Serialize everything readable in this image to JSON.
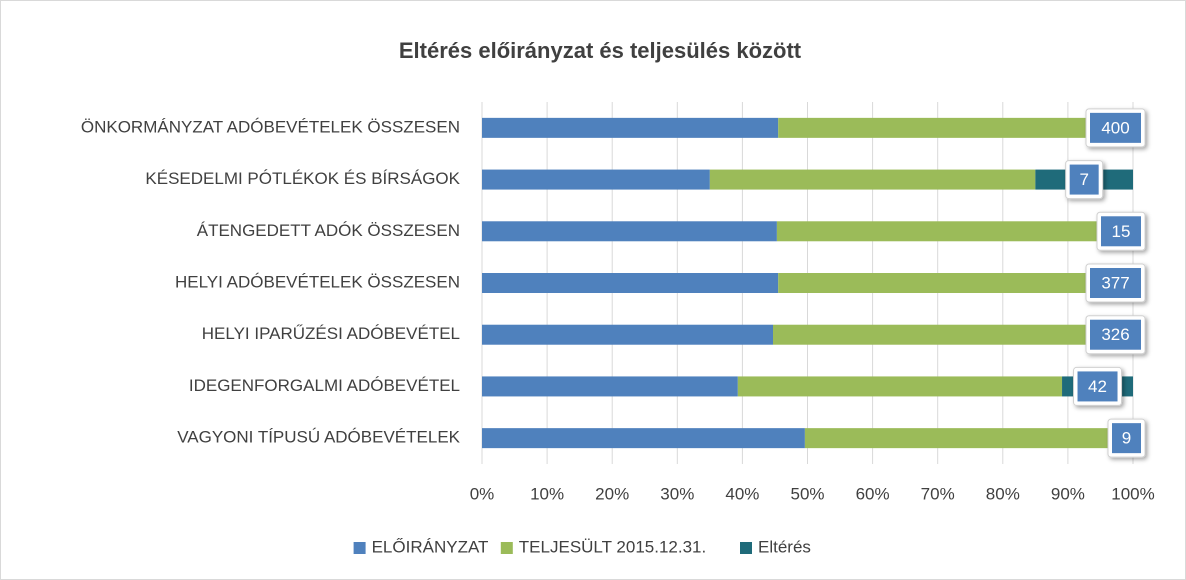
{
  "chart_data": {
    "type": "bar",
    "orientation": "horizontal",
    "stacked": true,
    "title": "Eltérés előirányzat és teljesülés között",
    "categories": [
      "ÖNKORMÁNYZAT ADÓBEVÉTELEK ÖSSZESEN",
      "KÉSEDELMI PÓTLÉKOK ÉS BÍRSÁGOK",
      "ÁTENGEDETT ADÓK ÖSSZESEN",
      "HELYI ADÓBEVÉTELEK ÖSSZESEN",
      "HELYI IPARŰZÉSI ADÓBEVÉTEL",
      "IDEGENFORGALMI ADÓBEVÉTEL",
      "VAGYONI TÍPUSÚ ADÓBEVÉTELEK"
    ],
    "series": [
      {
        "name": "ELŐIRÁNYZAT",
        "color": "#4f81bd",
        "values": [
          45.5,
          35.0,
          45.3,
          45.5,
          44.7,
          39.3,
          49.6
        ]
      },
      {
        "name": "TELJESÜLT 2015.12.31.",
        "color": "#9bbb59",
        "values": [
          54.0,
          50.0,
          54.2,
          54.0,
          54.8,
          49.8,
          50.0
        ]
      },
      {
        "name": "Eltérés",
        "color": "#1f6b7a",
        "values": [
          0.5,
          15.0,
          0.5,
          0.5,
          0.5,
          10.9,
          0.4
        ],
        "labels": [
          400,
          7,
          15,
          377,
          326,
          42,
          9
        ]
      }
    ],
    "xlim": [
      0,
      100
    ],
    "xticks": [
      {
        "value": 0,
        "label": "0%"
      },
      {
        "value": 10,
        "label": "10%"
      },
      {
        "value": 20,
        "label": "20%"
      },
      {
        "value": 30,
        "label": "30%"
      },
      {
        "value": 40,
        "label": "40%"
      },
      {
        "value": 50,
        "label": "50%"
      },
      {
        "value": 60,
        "label": "60%"
      },
      {
        "value": 70,
        "label": "70%"
      },
      {
        "value": 80,
        "label": "80%"
      },
      {
        "value": 90,
        "label": "90%"
      },
      {
        "value": 100,
        "label": "100%"
      }
    ],
    "grid": true,
    "legend": "bottom"
  }
}
